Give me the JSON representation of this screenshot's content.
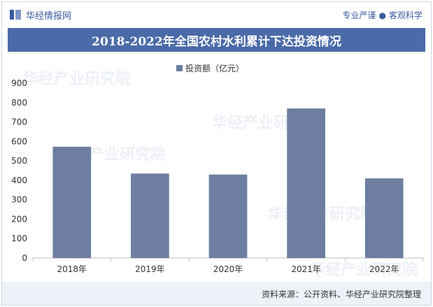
{
  "brand": {
    "name": "华经情报网",
    "logo_icon": "book-logo-icon",
    "color": "#3a5aa0"
  },
  "slogan": {
    "left": "专业严谨",
    "right": "客观科学"
  },
  "header": {
    "bar_color": "#4a6aa8"
  },
  "watermark": {
    "text": "华经产业研究院"
  },
  "footer": {
    "source": "资料来源：公开资料、华经产业研究院整理"
  },
  "chart_data": {
    "type": "bar",
    "title": "2018-2022年全国农村水利累计下达投资情况",
    "categories": [
      "2018年",
      "2019年",
      "2020年",
      "2021年",
      "2022年"
    ],
    "series": [
      {
        "name": "投资额（亿元）",
        "values": [
          573,
          435,
          430,
          770,
          410
        ],
        "color": "#6d7ea0"
      }
    ],
    "ylim": [
      0,
      900
    ],
    "yticks": [
      0,
      100,
      200,
      300,
      400,
      500,
      600,
      700,
      800,
      900
    ],
    "grid": false,
    "legend": "top-center"
  }
}
